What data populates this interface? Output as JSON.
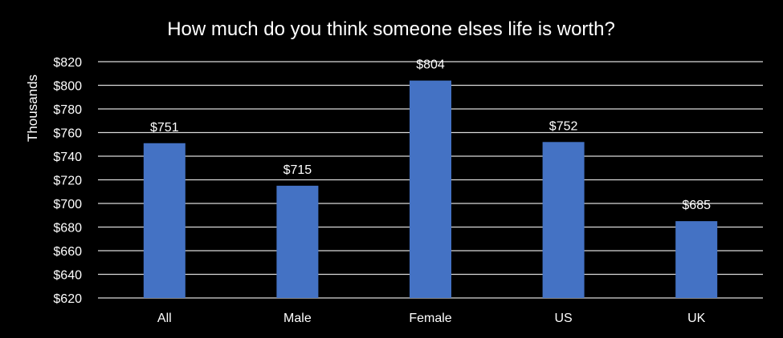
{
  "chart_data": {
    "type": "bar",
    "title": "How much do you think someone elses life is worth?",
    "ylabel": "Thousands",
    "xlabel": "",
    "categories": [
      "All",
      "Male",
      "Female",
      "US",
      "UK"
    ],
    "values": [
      751,
      715,
      804,
      752,
      685
    ],
    "value_labels": [
      "$751",
      "$715",
      "$804",
      "$752",
      "$685"
    ],
    "ylim": [
      620,
      820
    ],
    "yticks": [
      620,
      640,
      660,
      680,
      700,
      720,
      740,
      760,
      780,
      800,
      820
    ],
    "ytick_labels": [
      "$620",
      "$640",
      "$660",
      "$680",
      "$700",
      "$720",
      "$740",
      "$760",
      "$780",
      "$800",
      "$820"
    ],
    "grid": true,
    "legend": "none",
    "colors": {
      "background": "#000000",
      "bar": "#4472C4",
      "text": "#FFFFFF",
      "grid": "#D9D9D9"
    }
  }
}
